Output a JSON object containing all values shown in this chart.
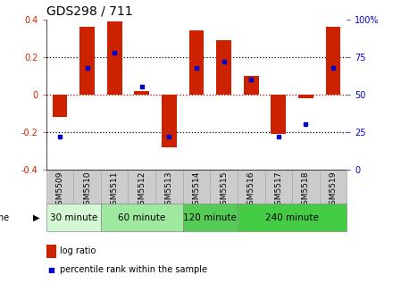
{
  "title": "GDS298 / 711",
  "samples": [
    "GSM5509",
    "GSM5510",
    "GSM5511",
    "GSM5512",
    "GSM5513",
    "GSM5514",
    "GSM5515",
    "GSM5516",
    "GSM5517",
    "GSM5518",
    "GSM5519"
  ],
  "log_ratio": [
    -0.12,
    0.36,
    0.39,
    0.02,
    -0.28,
    0.34,
    0.29,
    0.1,
    -0.21,
    -0.02,
    0.36
  ],
  "percentile": [
    22,
    68,
    78,
    55,
    22,
    68,
    72,
    60,
    22,
    30,
    68
  ],
  "bar_color": "#cc2200",
  "dot_color": "#0000cc",
  "ylim": [
    -0.4,
    0.4
  ],
  "y2lim": [
    0,
    100
  ],
  "yticks": [
    -0.4,
    -0.2,
    0.0,
    0.2,
    0.4
  ],
  "y2ticks": [
    0,
    25,
    50,
    75,
    100
  ],
  "y2ticklabels": [
    "0",
    "25",
    "50",
    "75",
    "100%"
  ],
  "dotted_lines_black": [
    -0.2,
    0.2
  ],
  "dotted_line_red": 0.0,
  "group_bounds": [
    {
      "start": 0,
      "end": 2,
      "label": "30 minute",
      "color": "#d4f7d4"
    },
    {
      "start": 2,
      "end": 5,
      "label": "60 minute",
      "color": "#9fe89f"
    },
    {
      "start": 5,
      "end": 7,
      "label": "120 minute",
      "color": "#55cc55"
    },
    {
      "start": 7,
      "end": 11,
      "label": "240 minute",
      "color": "#44cc44"
    }
  ],
  "bar_width": 0.55,
  "bg_color": "#ffffff",
  "sample_box_color": "#cccccc",
  "sample_box_edge": "#aaaaaa",
  "title_fontsize": 10,
  "legend_bar_label": "log ratio",
  "legend_dot_label": "percentile rank within the sample"
}
